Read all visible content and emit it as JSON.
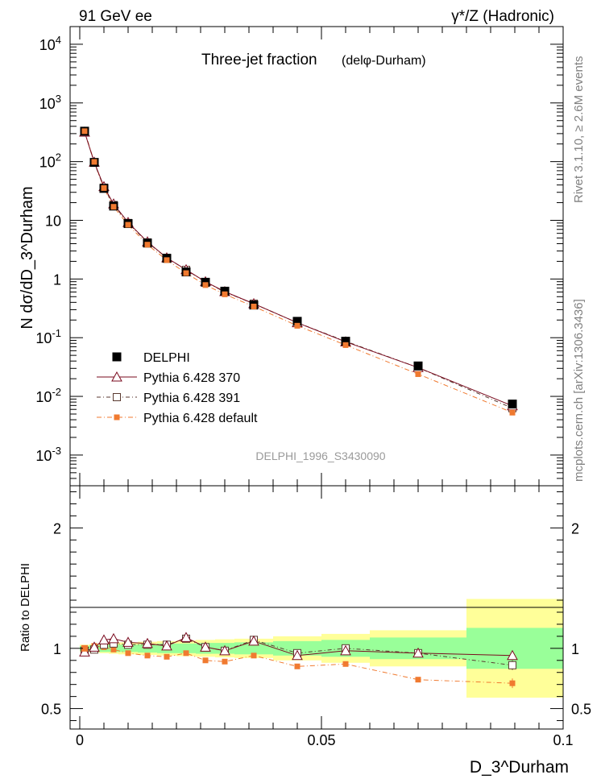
{
  "header": {
    "left": "91 GeV ee",
    "right": "γ*/Z (Hadronic)"
  },
  "side": {
    "rivet": "Rivet 3.1.10, ≥ 2.6M events",
    "mcplots": "mcplots.cern.ch [arXiv:1306.3436]"
  },
  "colors": {
    "delphi": "#000000",
    "p370": "#7a0a1e",
    "p391": "#5a3a30",
    "pdef": "#f07a30",
    "band_inner": "#99ff99",
    "band_outer": "#ffff99"
  },
  "chart_data": [
    {
      "type": "line",
      "panel": "main",
      "title": "Three-jet fraction",
      "subtitle": "(delφ-Durham)",
      "ylabel": "N dσ/dD_3^Durham",
      "xlabel": "",
      "yscale": "log",
      "xlim": [
        -0.002,
        0.1
      ],
      "ylim": [
        0.0003,
        20000
      ],
      "ytick_labels": [
        "10^-3",
        "10^-2",
        "10^-1",
        "1",
        "10",
        "10^2",
        "10^3",
        "10^4"
      ],
      "watermark": "DELPHI_1996_S3430090",
      "legend_position": "bottom-left",
      "x": [
        0.001,
        0.003,
        0.005,
        0.007,
        0.01,
        0.014,
        0.018,
        0.022,
        0.026,
        0.03,
        0.036,
        0.045,
        0.055,
        0.07,
        0.0895
      ],
      "series": [
        {
          "name": "DELPHI",
          "style": "data",
          "values": [
            330,
            97,
            35,
            17.5,
            8.8,
            4.1,
            2.25,
            1.32,
            0.88,
            0.62,
            0.36,
            0.19,
            0.087,
            0.033,
            0.0074
          ]
        },
        {
          "name": "Pythia 6.428 370",
          "style": "triangle-solid",
          "values": [
            318,
            98,
            37.5,
            19,
            9.2,
            4.3,
            2.3,
            1.44,
            0.9,
            0.61,
            0.38,
            0.18,
            0.085,
            0.031,
            0.0069
          ]
        },
        {
          "name": "Pythia 6.428 391",
          "style": "square-dashdot",
          "values": [
            325,
            96,
            36,
            18.2,
            9.0,
            4.2,
            2.3,
            1.43,
            0.89,
            0.6,
            0.38,
            0.18,
            0.087,
            0.031,
            0.0063
          ]
        },
        {
          "name": "Pythia 6.428 default",
          "style": "filled-square-dashdot",
          "values": [
            330,
            99,
            35.5,
            17,
            8.4,
            3.85,
            2.1,
            1.26,
            0.79,
            0.55,
            0.34,
            0.16,
            0.075,
            0.024,
            0.0053
          ]
        }
      ]
    },
    {
      "type": "line",
      "panel": "ratio",
      "ylabel": "Ratio to DELPHI",
      "xlabel": "D_3^Durham",
      "xlim": [
        -0.002,
        0.1
      ],
      "ylim": [
        0.33,
        2.35
      ],
      "yticks": [
        0.5,
        1,
        2
      ],
      "ytick_labels": [
        "0.5",
        "1",
        "2"
      ],
      "xticks": [
        0,
        0.05,
        0.1
      ],
      "xtick_labels": [
        "0",
        "0.05",
        "0.1"
      ],
      "bins": [
        {
          "lo": 0.0,
          "hi": 0.002,
          "inner": 0.02,
          "outer": 0.03
        },
        {
          "lo": 0.002,
          "hi": 0.004,
          "inner": 0.025,
          "outer": 0.035
        },
        {
          "lo": 0.004,
          "hi": 0.006,
          "inner": 0.03,
          "outer": 0.04
        },
        {
          "lo": 0.006,
          "hi": 0.008,
          "inner": 0.03,
          "outer": 0.045
        },
        {
          "lo": 0.008,
          "hi": 0.012,
          "inner": 0.03,
          "outer": 0.05
        },
        {
          "lo": 0.012,
          "hi": 0.016,
          "inner": 0.035,
          "outer": 0.055
        },
        {
          "lo": 0.016,
          "hi": 0.02,
          "inner": 0.04,
          "outer": 0.06
        },
        {
          "lo": 0.02,
          "hi": 0.024,
          "inner": 0.04,
          "outer": 0.065
        },
        {
          "lo": 0.024,
          "hi": 0.028,
          "inner": 0.045,
          "outer": 0.07
        },
        {
          "lo": 0.028,
          "hi": 0.032,
          "inner": 0.045,
          "outer": 0.075
        },
        {
          "lo": 0.032,
          "hi": 0.04,
          "inner": 0.05,
          "outer": 0.08
        },
        {
          "lo": 0.04,
          "hi": 0.05,
          "inner": 0.06,
          "outer": 0.1
        },
        {
          "lo": 0.05,
          "hi": 0.06,
          "inner": 0.07,
          "outer": 0.12
        },
        {
          "lo": 0.06,
          "hi": 0.08,
          "inner": 0.09,
          "outer": 0.15
        },
        {
          "lo": 0.08,
          "hi": 0.1,
          "inner": 0.17,
          "outer": 0.41
        }
      ],
      "x": [
        0.001,
        0.003,
        0.005,
        0.007,
        0.01,
        0.014,
        0.018,
        0.022,
        0.026,
        0.03,
        0.036,
        0.045,
        0.055,
        0.07,
        0.0895
      ],
      "series": [
        {
          "name": "Pythia 6.428 370",
          "style": "triangle-solid",
          "values": [
            0.97,
            1.01,
            1.07,
            1.08,
            1.05,
            1.04,
            1.02,
            1.09,
            1.01,
            0.98,
            1.06,
            0.94,
            0.98,
            0.96,
            0.94
          ],
          "errors": [
            0,
            0,
            0,
            0,
            0,
            0,
            0,
            0,
            0,
            0,
            0,
            0,
            0,
            0,
            0.03
          ]
        },
        {
          "name": "Pythia 6.428 391",
          "style": "square-dashdot",
          "values": [
            0.98,
            0.99,
            1.03,
            1.04,
            1.03,
            1.03,
            1.03,
            1.08,
            1.01,
            0.98,
            1.07,
            0.96,
            1.0,
            0.96,
            0.86
          ],
          "errors": [
            0,
            0,
            0,
            0,
            0,
            0,
            0,
            0,
            0,
            0,
            0,
            0,
            0,
            0,
            0.04
          ]
        },
        {
          "name": "Pythia 6.428 default",
          "style": "filled-square-dashdot",
          "values": [
            1.0,
            1.02,
            1.01,
            0.99,
            0.96,
            0.94,
            0.93,
            0.96,
            0.9,
            0.89,
            0.94,
            0.85,
            0.87,
            0.74,
            0.71
          ],
          "errors": [
            0,
            0,
            0,
            0,
            0,
            0,
            0,
            0,
            0,
            0,
            0,
            0,
            0,
            0.02,
            0.04
          ]
        }
      ]
    }
  ]
}
